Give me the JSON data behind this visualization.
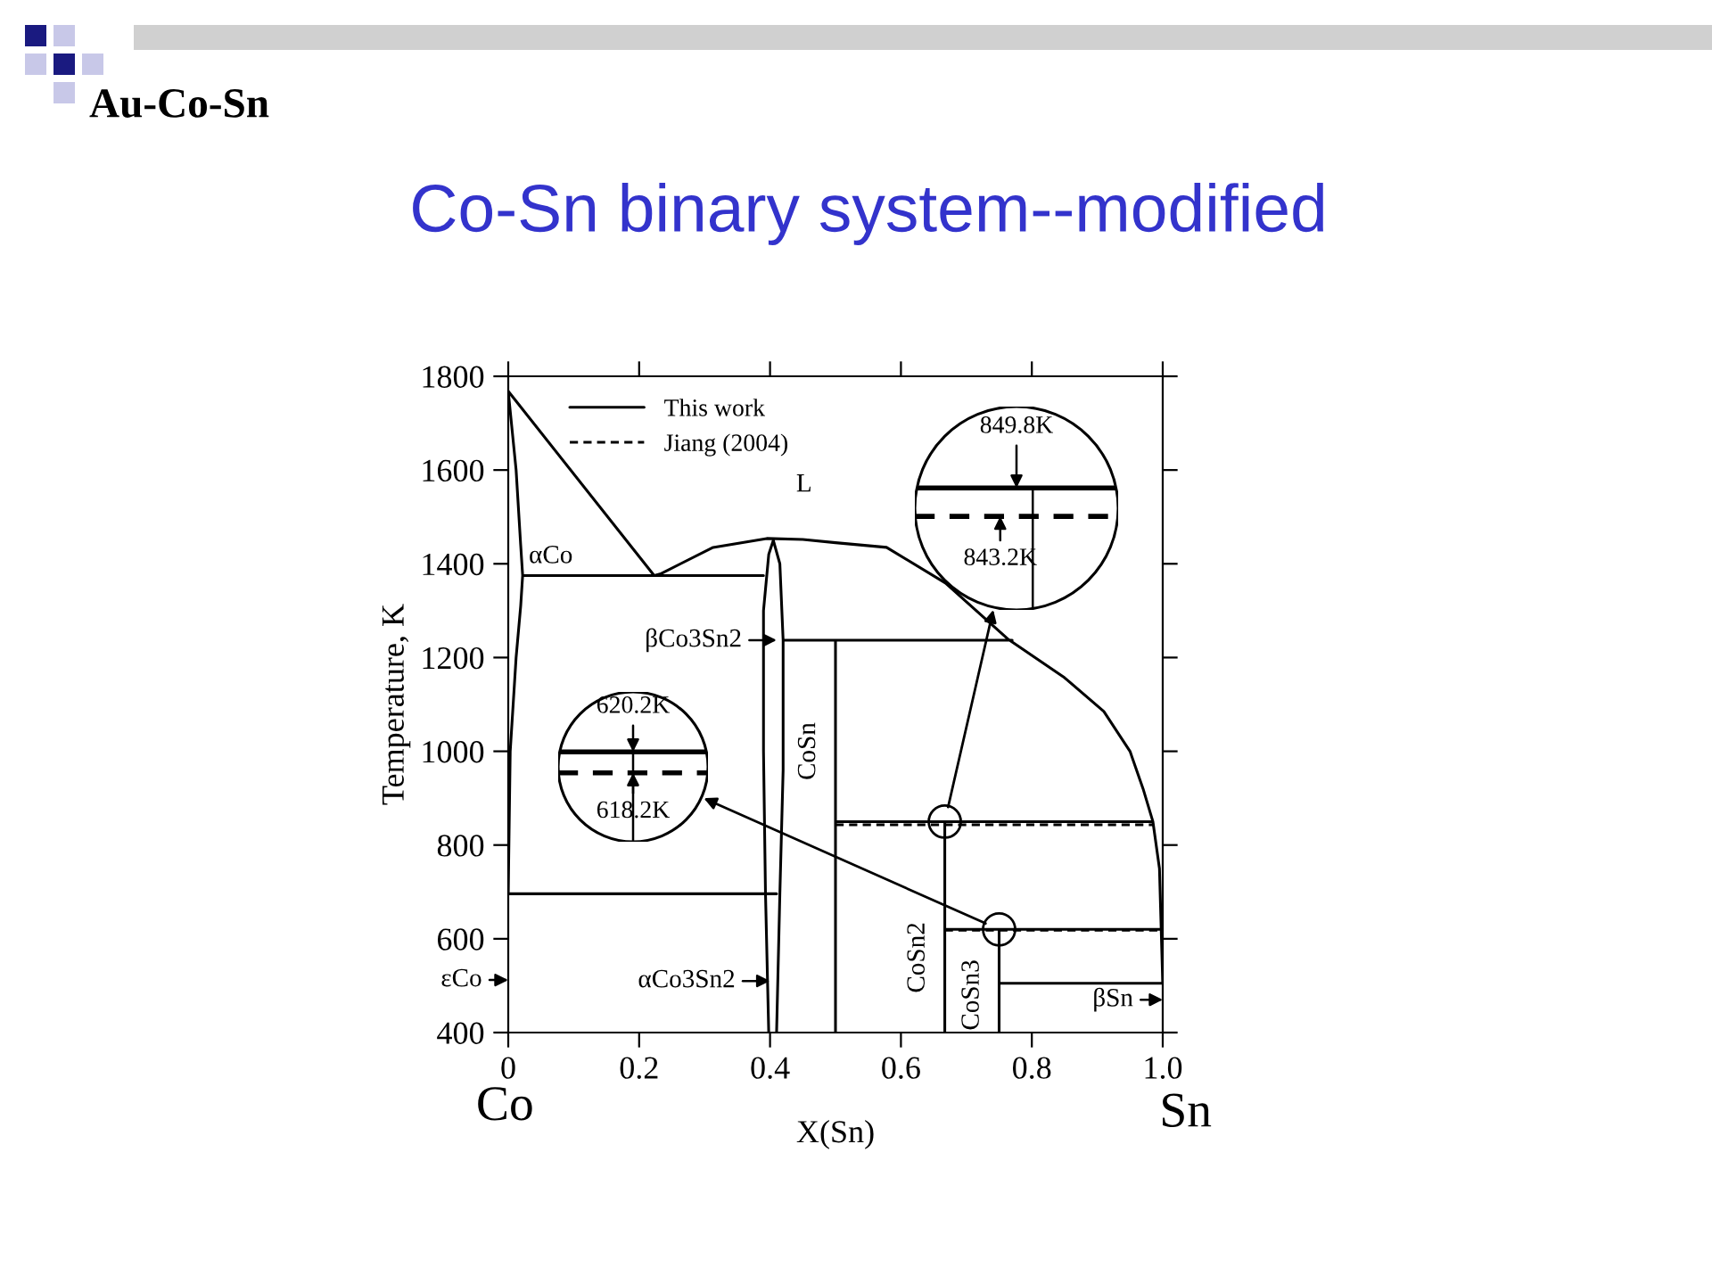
{
  "chart_data": {
    "type": "line",
    "title": "Co-Sn binary system--modified",
    "subtitle": "Au-Co-Sn",
    "xlabel": "X(Sn)",
    "ylabel": "Temperature, K",
    "xlim": [
      0,
      1.0
    ],
    "ylim": [
      400,
      1800
    ],
    "xticks": [
      0,
      0.2,
      0.4,
      0.6,
      0.8,
      {
        "value": 1,
        "label": "1.0"
      }
    ],
    "yticks": [
      400,
      600,
      800,
      1000,
      1200,
      1400,
      1600,
      1800
    ],
    "legend": "top left",
    "grid": false,
    "series": [
      {
        "name": "This work",
        "color": "#000000",
        "line_style": "solid",
        "x": [
          0,
          0.223,
          null,
          0.223,
          0.232,
          0.313,
          0.395,
          0.45,
          0.5,
          0.578,
          0.668,
          0.763,
          0.85,
          0.91,
          0.95,
          0.97,
          0.985,
          0.995,
          1.0,
          null,
          0,
          0.012,
          0.019,
          0.022,
          0.019,
          0.012,
          0.003,
          0,
          null,
          0.398,
          0.393,
          0.39,
          0.39,
          0.398,
          0.405,
          0.415,
          0.42,
          0.42,
          0.415,
          0.41,
          null,
          0.5,
          0.5,
          null,
          0.667,
          0.667,
          null,
          0.75,
          0.75,
          null,
          0.022,
          0.39,
          null,
          0.42,
          0.77,
          null,
          0.5,
          0.985,
          null,
          0.667,
          1.0,
          null,
          0.75,
          1.0,
          null,
          0,
          0.41
        ],
        "values": [
          1768,
          1375,
          null,
          1375,
          1378,
          1435,
          1454,
          1452,
          1445,
          1435,
          1359,
          1240,
          1157,
          1085,
          1000,
          920,
          850,
          750,
          505,
          null,
          1768,
          1600,
          1440,
          1375,
          1310,
          1200,
          1000,
          700,
          null,
          400,
          700,
          1000,
          1300,
          1420,
          1450,
          1400,
          1237,
          960,
          696,
          400,
          null,
          400,
          1237,
          null,
          400,
          850,
          null,
          400,
          620,
          null,
          1375,
          1375,
          null,
          1237,
          1237,
          null,
          849.8,
          849.8,
          null,
          620.2,
          620.2,
          null,
          505,
          505,
          null,
          696,
          696
        ]
      },
      {
        "name": "Jiang (2004)",
        "color": "#000000",
        "line_style": "dashed",
        "x": [
          0.5,
          0.985,
          null,
          0.667,
          1.0
        ],
        "values": [
          843.2,
          843.2,
          null,
          618.2,
          618.2
        ]
      }
    ],
    "annotations": [
      "L",
      "αCo",
      {
        "text": "βCo3Sn2",
        "x": 0.41,
        "y": 1237
      },
      {
        "text": "CoSn",
        "x": 0.5,
        "y": 1000
      },
      {
        "text": "CoSn2",
        "x": 0.667,
        "y": 560
      },
      {
        "text": "CoSn3",
        "x": 0.75,
        "y": 480
      },
      "εCo",
      {
        "text": "αCo3Sn2",
        "x": 0.4,
        "y": 510
      },
      "βSn",
      "620.2K",
      "618.2K",
      "849.8K",
      "843.2K",
      "Co",
      "Sn"
    ]
  }
}
